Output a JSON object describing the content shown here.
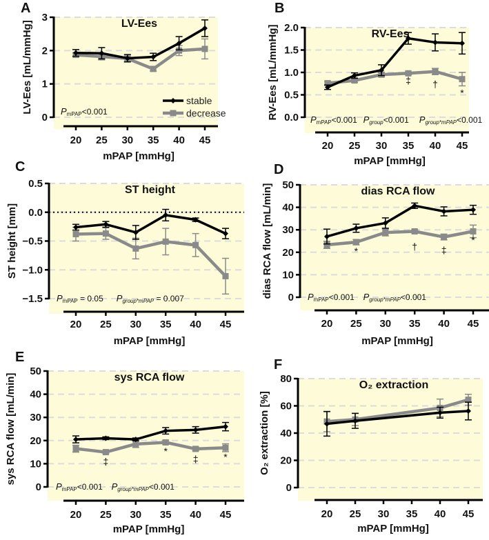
{
  "colors": {
    "stable": "#000000",
    "decrease": "#8a8a8a",
    "background": "#fdfbd8",
    "grid": "#dcdcdc"
  },
  "legend": {
    "stable": "stable",
    "decrease": "decrease"
  },
  "chart_data": [
    {
      "panel": "A",
      "type": "line",
      "title": "LV-Ees",
      "xlabel": "mPAP [mmHg]",
      "ylabel": "LV-Ees [mL/mmHg]",
      "x": [
        20,
        25,
        30,
        35,
        40,
        45
      ],
      "ylim": [
        0,
        3
      ],
      "yticks": [
        "0",
        "1",
        "2",
        "3"
      ],
      "ytick_values": [
        0,
        1,
        2,
        3
      ],
      "xticks": [
        "20",
        "25",
        "30",
        "35",
        "40",
        "45"
      ],
      "series": [
        {
          "name": "stable",
          "values": [
            1.93,
            1.92,
            1.77,
            1.81,
            2.22,
            2.67
          ],
          "errors": [
            0.1,
            0.17,
            0.11,
            0.11,
            0.2,
            0.25
          ]
        },
        {
          "name": "decrease",
          "values": [
            1.87,
            1.82,
            1.76,
            1.45,
            2.0,
            2.05
          ],
          "errors": [
            0.06,
            0.1,
            0.08,
            0.07,
            0.15,
            0.3
          ]
        }
      ],
      "pvalues": [
        {
          "p": "P",
          "sub": "mPAP",
          "val": "<0.001"
        }
      ],
      "annotations": [],
      "legend": "bottom-right"
    },
    {
      "panel": "B",
      "type": "line",
      "title": "RV-Ees",
      "xlabel": "mPAP [mmHg]",
      "ylabel": "RV-Ees [mL/mmHg]",
      "x": [
        20,
        25,
        30,
        35,
        40,
        45
      ],
      "ylim": [
        0,
        2
      ],
      "yticks": [
        "0.0",
        "0.5",
        "1.0",
        "1.5",
        "2.0"
      ],
      "ytick_values": [
        0,
        0.5,
        1,
        1.5,
        2
      ],
      "xticks": [
        "20",
        "25",
        "30",
        "35",
        "40",
        "45"
      ],
      "series": [
        {
          "name": "stable",
          "values": [
            0.67,
            0.93,
            1.05,
            1.76,
            1.67,
            1.65
          ],
          "errors": [
            0.05,
            0.06,
            0.12,
            0.13,
            0.19,
            0.24
          ]
        },
        {
          "name": "decrease",
          "values": [
            0.76,
            0.82,
            0.95,
            0.98,
            1.02,
            0.85
          ],
          "errors": [
            0.04,
            0.04,
            0.05,
            0.03,
            0.07,
            0.15
          ]
        }
      ],
      "pvalues": [
        {
          "p": "P",
          "sub": "mPAP",
          "val": "<0.001"
        },
        {
          "p": "P",
          "sub": "group",
          "val": "<0.001"
        },
        {
          "p": "P",
          "sub": "group*mPAP",
          "val": "<0.001"
        }
      ],
      "annotations": [
        {
          "x": 35,
          "y": 0.75,
          "text": "‡"
        },
        {
          "x": 40,
          "y": 0.66,
          "text": "†"
        },
        {
          "x": 45,
          "y": 0.47,
          "text": "*"
        }
      ]
    },
    {
      "panel": "C",
      "type": "line",
      "title": "ST height",
      "xlabel": "mPAP [mmHg]",
      "ylabel": "ST height [mm]",
      "x": [
        20,
        25,
        30,
        35,
        40,
        45
      ],
      "ylim": [
        -1.5,
        0.5
      ],
      "yticks": [
        "−1.5",
        "−1.0",
        "−0.5",
        "0.0",
        "0.5"
      ],
      "ytick_values": [
        -1.5,
        -1,
        -0.5,
        0,
        0.5
      ],
      "xticks": [
        "20",
        "25",
        "30",
        "35",
        "40",
        "45"
      ],
      "reference_line": 0,
      "series": [
        {
          "name": "stable",
          "values": [
            -0.26,
            -0.21,
            -0.35,
            -0.05,
            -0.13,
            -0.37
          ],
          "errors": [
            0.05,
            0.05,
            0.12,
            0.1,
            0.03,
            0.09
          ]
        },
        {
          "name": "decrease",
          "values": [
            -0.38,
            -0.37,
            -0.63,
            -0.51,
            -0.57,
            -1.11
          ],
          "errors": [
            0.12,
            0.1,
            0.18,
            0.23,
            0.2,
            0.31
          ]
        }
      ],
      "pvalues": [
        {
          "p": "P",
          "sub": "mPAP",
          "val": " = 0.05"
        },
        {
          "p": "P",
          "sub": "group*mPAP",
          "val": " = 0.007"
        }
      ],
      "annotations": []
    },
    {
      "panel": "D",
      "type": "line",
      "title": "dias RCA flow",
      "xlabel": "mPAP [mmHg]",
      "ylabel": "dias RCA flow [mL/min]",
      "x": [
        20,
        25,
        30,
        35,
        40,
        45
      ],
      "ylim": [
        0,
        50
      ],
      "yticks": [
        "0",
        "10",
        "20",
        "30",
        "40",
        "50"
      ],
      "ytick_values": [
        0,
        10,
        20,
        30,
        40,
        50
      ],
      "xticks": [
        "20",
        "25",
        "30",
        "35",
        "40",
        "45"
      ],
      "series": [
        {
          "name": "stable",
          "values": [
            27,
            30.7,
            33,
            40.7,
            38.2,
            38.9
          ],
          "errors": [
            3.3,
            1.8,
            2.3,
            1.2,
            2,
            2
          ]
        },
        {
          "name": "decrease",
          "values": [
            23.3,
            24.5,
            28.8,
            29.3,
            26.8,
            29.3
          ],
          "errors": [
            1.6,
            1.2,
            1.5,
            0.7,
            1.3,
            2.8
          ]
        }
      ],
      "pvalues": [
        {
          "p": "P",
          "sub": "mPAP",
          "val": "<0.001"
        },
        {
          "p": "P",
          "sub": "group*mPAP",
          "val": "<0.001"
        }
      ],
      "annotations": [
        {
          "x": 25,
          "y": 19,
          "text": "*"
        },
        {
          "x": 35,
          "y": 21,
          "text": "†"
        },
        {
          "x": 40,
          "y": 19.5,
          "text": "‡"
        },
        {
          "x": 45,
          "y": 24,
          "text": "*"
        }
      ]
    },
    {
      "panel": "E",
      "type": "line",
      "title": "sys RCA flow",
      "xlabel": "mPAP [mmHg]",
      "ylabel": "sys RCA flow [mL/min]",
      "x": [
        20,
        25,
        30,
        35,
        40,
        45
      ],
      "ylim": [
        0,
        50
      ],
      "yticks": [
        "0",
        "10",
        "20",
        "30",
        "40",
        "50"
      ],
      "ytick_values": [
        0,
        10,
        20,
        30,
        40,
        50
      ],
      "xticks": [
        "20",
        "25",
        "30",
        "35",
        "40",
        "45"
      ],
      "series": [
        {
          "name": "stable",
          "values": [
            20.5,
            21,
            20.5,
            24.2,
            24.6,
            26
          ],
          "errors": [
            1.5,
            0.6,
            0.6,
            1.4,
            1.4,
            1.8
          ]
        },
        {
          "name": "decrease",
          "values": [
            16.5,
            15,
            18.5,
            19.2,
            16.4,
            16.9
          ],
          "errors": [
            1.5,
            0.6,
            1.5,
            0.8,
            0.8,
            1.7
          ]
        }
      ],
      "pvalues": [
        {
          "p": "P",
          "sub": "mPAP",
          "val": "<0.001"
        },
        {
          "p": "P",
          "sub": "group*mPAP",
          "val": "<0.001"
        }
      ],
      "annotations": [
        {
          "x": 25,
          "y": 9.5,
          "text": "‡"
        },
        {
          "x": 35,
          "y": 14,
          "text": "*"
        },
        {
          "x": 40,
          "y": 10.5,
          "text": "‡"
        },
        {
          "x": 45,
          "y": 11.5,
          "text": "*"
        }
      ]
    },
    {
      "panel": "F",
      "type": "line",
      "title": "O₂ extraction",
      "xlabel": "mPAP [mmHg]",
      "ylabel": "O₂ extraction [%]",
      "x": [
        20,
        25,
        40,
        45
      ],
      "ylim": [
        0,
        80
      ],
      "yticks": [
        "0",
        "20",
        "40",
        "60",
        "80"
      ],
      "ytick_values": [
        0,
        20,
        40,
        60,
        80
      ],
      "xticks": [
        "20",
        "25",
        "30",
        "35",
        "40",
        "45"
      ],
      "series": [
        {
          "name": "stable",
          "values": [
            46.8,
            49,
            55,
            56.2
          ],
          "errors": [
            9,
            5.5,
            4,
            6.5
          ]
        },
        {
          "name": "decrease",
          "values": [
            48.5,
            50,
            58.5,
            64.5
          ],
          "errors": [
            7.5,
            4.5,
            6.5,
            4
          ]
        }
      ],
      "pvalues": [],
      "annotations": []
    }
  ]
}
